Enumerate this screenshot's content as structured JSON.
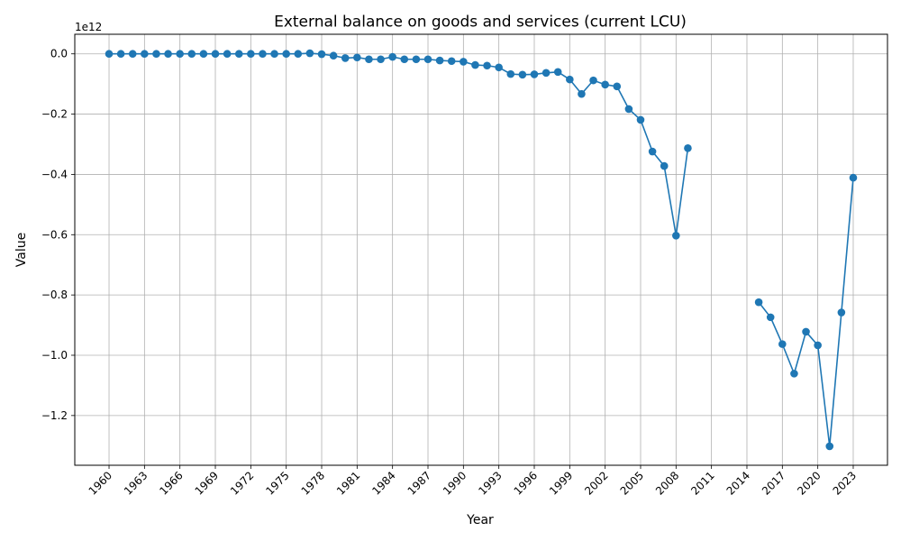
{
  "chart_data": {
    "type": "line",
    "title": "External balance on goods and services (current LCU)",
    "xlabel": "Year",
    "ylabel": "Value",
    "y_offset_label": "1e12",
    "xlim": [
      1957.1,
      2025.9
    ],
    "ylim": [
      -1.365,
      0.065
    ],
    "x_ticks": [
      1960,
      1963,
      1966,
      1969,
      1972,
      1975,
      1978,
      1981,
      1984,
      1987,
      1990,
      1993,
      1996,
      1999,
      2002,
      2005,
      2008,
      2011,
      2014,
      2017,
      2020,
      2023
    ],
    "x_tick_labels": [
      "1960",
      "1963",
      "1966",
      "1969",
      "1972",
      "1975",
      "1978",
      "1981",
      "1984",
      "1987",
      "1990",
      "1993",
      "1996",
      "1999",
      "2002",
      "2005",
      "2008",
      "2011",
      "2014",
      "2017",
      "2020",
      "2023"
    ],
    "y_ticks": [
      0.0,
      -0.2,
      -0.4,
      -0.6,
      -0.8,
      -1.0,
      -1.2
    ],
    "y_tick_labels": [
      "0.0",
      "−0.2",
      "−0.4",
      "−0.6",
      "−0.8",
      "−1.0",
      "−1.2"
    ],
    "grid": true,
    "series_color": "#1f77b4",
    "x": [
      1960,
      1961,
      1962,
      1963,
      1964,
      1965,
      1966,
      1967,
      1968,
      1969,
      1970,
      1971,
      1972,
      1973,
      1974,
      1975,
      1976,
      1977,
      1978,
      1979,
      1980,
      1981,
      1982,
      1983,
      1984,
      1985,
      1986,
      1987,
      1988,
      1989,
      1990,
      1991,
      1992,
      1993,
      1994,
      1995,
      1996,
      1997,
      1998,
      1999,
      2000,
      2001,
      2002,
      2003,
      2004,
      2005,
      2006,
      2007,
      2008,
      2009,
      2010,
      2011,
      2012,
      2013,
      2014,
      2015,
      2016,
      2017,
      2018,
      2019,
      2020,
      2021,
      2022,
      2023
    ],
    "y": [
      0.0,
      0.0,
      0.0,
      0.0,
      0.0,
      0.0,
      0.0,
      0.0,
      0.0,
      0.0,
      0.0,
      0.0,
      0.0,
      0.0,
      0.0,
      0.0,
      0.0,
      0.002,
      -0.001,
      -0.006,
      -0.014,
      -0.012,
      -0.018,
      -0.018,
      -0.01,
      -0.018,
      -0.018,
      -0.018,
      -0.022,
      -0.024,
      -0.026,
      -0.037,
      -0.039,
      -0.045,
      -0.067,
      -0.069,
      -0.068,
      -0.063,
      -0.06,
      -0.085,
      -0.133,
      -0.088,
      -0.102,
      -0.108,
      -0.183,
      -0.219,
      -0.324,
      -0.372,
      -0.603,
      -0.313,
      null,
      null,
      null,
      null,
      null,
      -0.824,
      -0.874,
      -0.963,
      -1.061,
      -0.922,
      -0.967,
      -1.302,
      -0.858,
      -0.411
    ]
  }
}
